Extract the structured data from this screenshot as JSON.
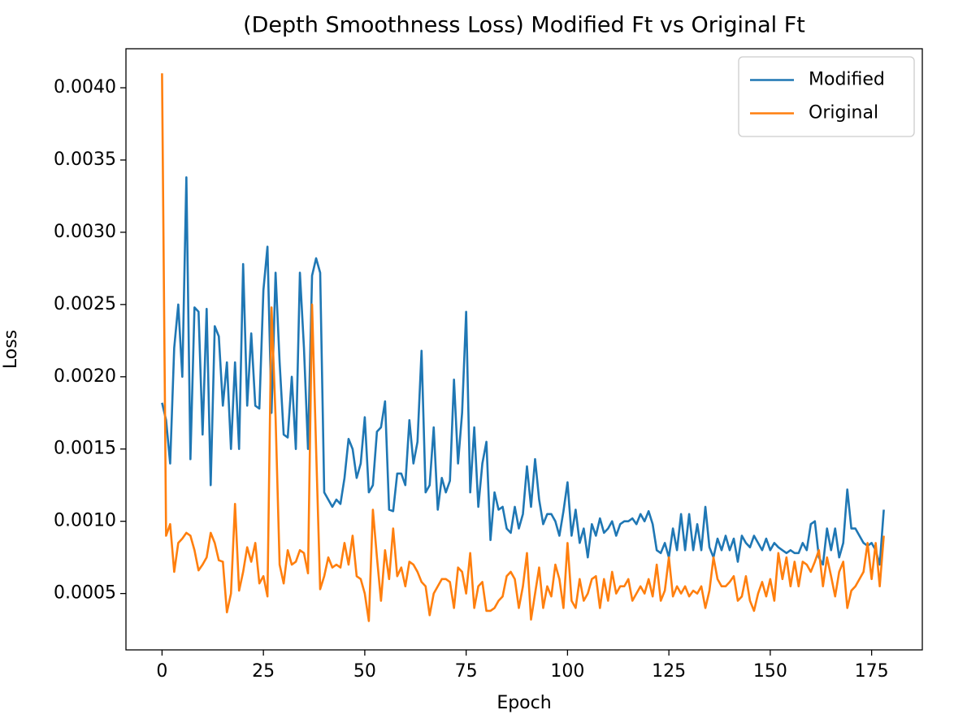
{
  "chart_data": {
    "type": "line",
    "title": "(Depth Smoothness Loss) Modified Ft vs Original Ft",
    "xlabel": "Epoch",
    "ylabel": "Loss",
    "x": [
      0,
      1,
      2,
      3,
      4,
      5,
      6,
      7,
      8,
      9,
      10,
      11,
      12,
      13,
      14,
      15,
      16,
      17,
      18,
      19,
      20,
      21,
      22,
      23,
      24,
      25,
      26,
      27,
      28,
      29,
      30,
      31,
      32,
      33,
      34,
      35,
      36,
      37,
      38,
      39,
      40,
      41,
      42,
      43,
      44,
      45,
      46,
      47,
      48,
      49,
      50,
      51,
      52,
      53,
      54,
      55,
      56,
      57,
      58,
      59,
      60,
      61,
      62,
      63,
      64,
      65,
      66,
      67,
      68,
      69,
      70,
      71,
      72,
      73,
      74,
      75,
      76,
      77,
      78,
      79,
      80,
      81,
      82,
      83,
      84,
      85,
      86,
      87,
      88,
      89,
      90,
      91,
      92,
      93,
      94,
      95,
      96,
      97,
      98,
      99,
      100,
      101,
      102,
      103,
      104,
      105,
      106,
      107,
      108,
      109,
      110,
      111,
      112,
      113,
      114,
      115,
      116,
      117,
      118,
      119,
      120,
      121,
      122,
      123,
      124,
      125,
      126,
      127,
      128,
      129,
      130,
      131,
      132,
      133,
      134,
      135,
      136,
      137,
      138,
      139,
      140,
      141,
      142,
      143,
      144,
      145,
      146,
      147,
      148,
      149,
      150,
      151,
      152,
      153,
      154,
      155,
      156,
      157,
      158,
      159,
      160,
      161,
      162,
      163,
      164,
      165,
      166,
      167,
      168,
      169,
      170,
      171,
      172,
      173,
      174,
      175,
      176,
      177,
      178
    ],
    "series": [
      {
        "name": "Modified",
        "color": "#1f77b4",
        "values": [
          0.00182,
          0.0017,
          0.0014,
          0.0022,
          0.0025,
          0.002,
          0.00338,
          0.00143,
          0.00248,
          0.00245,
          0.0016,
          0.00247,
          0.00125,
          0.00235,
          0.00228,
          0.0018,
          0.0021,
          0.0015,
          0.0021,
          0.0015,
          0.00278,
          0.0018,
          0.0023,
          0.0018,
          0.00178,
          0.0026,
          0.0029,
          0.00175,
          0.00272,
          0.0021,
          0.0016,
          0.00158,
          0.002,
          0.0015,
          0.00272,
          0.0022,
          0.0015,
          0.0027,
          0.00282,
          0.00272,
          0.0012,
          0.00115,
          0.0011,
          0.00115,
          0.00112,
          0.0013,
          0.00157,
          0.0015,
          0.0013,
          0.0014,
          0.00172,
          0.0012,
          0.00125,
          0.00162,
          0.00165,
          0.00183,
          0.00108,
          0.00107,
          0.00133,
          0.00133,
          0.00125,
          0.0017,
          0.0014,
          0.00155,
          0.00218,
          0.0012,
          0.00125,
          0.00165,
          0.00108,
          0.0013,
          0.0012,
          0.00128,
          0.00198,
          0.0014,
          0.00175,
          0.00245,
          0.0012,
          0.00165,
          0.0011,
          0.0014,
          0.00155,
          0.00087,
          0.0012,
          0.00108,
          0.0011,
          0.00095,
          0.00092,
          0.0011,
          0.00095,
          0.00105,
          0.00138,
          0.0011,
          0.00143,
          0.00115,
          0.00098,
          0.00105,
          0.00105,
          0.001,
          0.0009,
          0.00107,
          0.00127,
          0.0009,
          0.00108,
          0.00085,
          0.00095,
          0.00075,
          0.00098,
          0.0009,
          0.00102,
          0.00092,
          0.00095,
          0.001,
          0.0009,
          0.00098,
          0.001,
          0.001,
          0.00102,
          0.00098,
          0.00105,
          0.001,
          0.00107,
          0.00098,
          0.0008,
          0.00078,
          0.00085,
          0.00075,
          0.00095,
          0.0008,
          0.00105,
          0.0008,
          0.00105,
          0.0008,
          0.00098,
          0.0008,
          0.0011,
          0.00082,
          0.00075,
          0.00088,
          0.0008,
          0.0009,
          0.0008,
          0.00088,
          0.00072,
          0.0009,
          0.00085,
          0.00082,
          0.0009,
          0.00085,
          0.0008,
          0.00088,
          0.0008,
          0.00085,
          0.00082,
          0.0008,
          0.00078,
          0.0008,
          0.00078,
          0.00078,
          0.00085,
          0.0008,
          0.00098,
          0.001,
          0.00075,
          0.0007,
          0.00095,
          0.0008,
          0.00095,
          0.00075,
          0.00085,
          0.00122,
          0.00095,
          0.00095,
          0.0009,
          0.00085,
          0.00083,
          0.00085,
          0.0008,
          0.0007,
          0.00108
        ]
      },
      {
        "name": "Original",
        "color": "#ff7f0e",
        "values": [
          0.0041,
          0.0009,
          0.00098,
          0.00065,
          0.00085,
          0.00088,
          0.00092,
          0.0009,
          0.0008,
          0.00066,
          0.0007,
          0.00075,
          0.00092,
          0.00085,
          0.00073,
          0.00072,
          0.00037,
          0.0005,
          0.00112,
          0.00052,
          0.00065,
          0.00082,
          0.00072,
          0.00085,
          0.00057,
          0.00062,
          0.00048,
          0.00248,
          0.00172,
          0.0007,
          0.00057,
          0.0008,
          0.0007,
          0.00072,
          0.0008,
          0.00078,
          0.00064,
          0.0025,
          0.0015,
          0.00053,
          0.00062,
          0.00075,
          0.00068,
          0.0007,
          0.00068,
          0.00085,
          0.0007,
          0.0009,
          0.00062,
          0.0006,
          0.0005,
          0.00031,
          0.00108,
          0.00075,
          0.00045,
          0.0008,
          0.0006,
          0.00095,
          0.00062,
          0.00068,
          0.00055,
          0.00072,
          0.0007,
          0.00065,
          0.00058,
          0.00055,
          0.00035,
          0.0005,
          0.00055,
          0.0006,
          0.0006,
          0.00058,
          0.0004,
          0.00068,
          0.00065,
          0.0005,
          0.00078,
          0.0004,
          0.00055,
          0.00058,
          0.00038,
          0.00038,
          0.0004,
          0.00045,
          0.00048,
          0.00062,
          0.00065,
          0.0006,
          0.0004,
          0.00055,
          0.00078,
          0.00032,
          0.0005,
          0.00068,
          0.0004,
          0.00055,
          0.00048,
          0.0007,
          0.0006,
          0.0004,
          0.00085,
          0.00045,
          0.0004,
          0.0006,
          0.00045,
          0.0005,
          0.0006,
          0.00062,
          0.0004,
          0.0006,
          0.00045,
          0.00065,
          0.0005,
          0.00055,
          0.00055,
          0.0006,
          0.00045,
          0.0005,
          0.00055,
          0.0005,
          0.0006,
          0.00048,
          0.0007,
          0.00045,
          0.00052,
          0.00075,
          0.00048,
          0.00055,
          0.0005,
          0.00055,
          0.00048,
          0.00052,
          0.0005,
          0.00055,
          0.0004,
          0.00052,
          0.00075,
          0.0006,
          0.00055,
          0.00055,
          0.00058,
          0.00062,
          0.00045,
          0.00048,
          0.00062,
          0.00045,
          0.00038,
          0.0005,
          0.00058,
          0.00048,
          0.0006,
          0.00045,
          0.00078,
          0.0006,
          0.00075,
          0.00055,
          0.00072,
          0.00055,
          0.00072,
          0.0007,
          0.00065,
          0.00072,
          0.0008,
          0.00055,
          0.00075,
          0.00062,
          0.00048,
          0.00065,
          0.00072,
          0.0004,
          0.00052,
          0.00055,
          0.0006,
          0.00065,
          0.00085,
          0.0006,
          0.00085,
          0.00055,
          0.0009
        ]
      }
    ],
    "xlim": [
      -8.9,
      187.5
    ],
    "xticks": [
      0,
      25,
      50,
      75,
      100,
      125,
      150,
      175
    ],
    "ylim": [
      0.00011,
      0.00427
    ],
    "yticks": [
      0.0005,
      {
        "value": 0.001,
        "label": "0.0010"
      },
      0.0015,
      {
        "value": 0.002,
        "label": "0.0020"
      },
      0.0025,
      {
        "value": 0.003,
        "label": "0.0030"
      },
      0.0035,
      {
        "value": 0.004,
        "label": "0.0040"
      }
    ],
    "legend": "upper right",
    "grid": false
  }
}
